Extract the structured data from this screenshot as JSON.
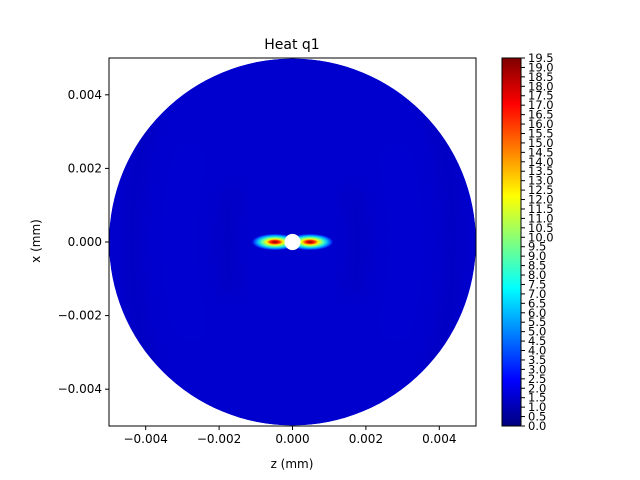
{
  "chart_data": {
    "type": "heatmap",
    "title": "Heat q1",
    "xlabel": "z (mm)",
    "ylabel": "x (mm)",
    "xlim": [
      -0.005,
      0.005
    ],
    "ylim": [
      -0.005,
      0.005
    ],
    "x_ticks": [
      -0.004,
      -0.002,
      0.0,
      0.002,
      0.004
    ],
    "x_tick_labels": [
      "−0.004",
      "−0.002",
      "0.000",
      "0.002",
      "0.004"
    ],
    "y_ticks": [
      0.004,
      0.002,
      0.0,
      -0.002,
      -0.004
    ],
    "y_tick_labels": [
      "0.004",
      "0.002",
      "0.000",
      "−0.002",
      "−0.004"
    ],
    "grid": false,
    "colormap": "jet",
    "domain": {
      "shape": "disk",
      "outer_radius": 0.005,
      "hole_radius": 0.00022
    },
    "background_level": 1.5,
    "hotspots": [
      {
        "z": -0.00048,
        "x": 0.0,
        "peak": 19.5
      },
      {
        "z": 0.00048,
        "x": 0.0,
        "peak": 19.5
      }
    ],
    "colorbar": {
      "min": 0.0,
      "max": 19.5,
      "tick_labels": [
        "0.0",
        "0.5",
        "1.0",
        "1.5",
        "2.0",
        "2.5",
        "3.0",
        "3.5",
        "4.0",
        "4.5",
        "5.0",
        "5.5",
        "6.0",
        "6.5",
        "7.0",
        "7.5",
        "8.0",
        "8.5",
        "9.0",
        "9.5",
        "10.0",
        "10.5",
        "11.0",
        "11.5",
        "12.0",
        "12.5",
        "13.0",
        "13.5",
        "14.0",
        "14.5",
        "15.0",
        "15.5",
        "16.0",
        "16.5",
        "17.0",
        "17.5",
        "18.0",
        "18.5",
        "19.0",
        "19.5"
      ]
    }
  },
  "colors": {
    "jet": [
      "#00007f",
      "#0000ff",
      "#007fff",
      "#00ffff",
      "#7fff7f",
      "#ffff00",
      "#ff7f00",
      "#ff0000",
      "#7f0000"
    ]
  }
}
